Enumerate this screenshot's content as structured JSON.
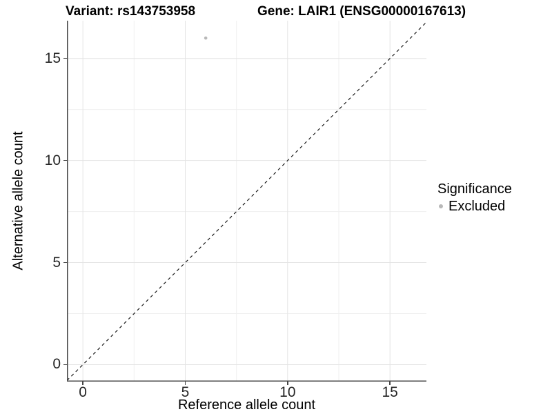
{
  "figure": {
    "title_variant": "Variant: rs143753958",
    "title_gene": "Gene: LAIR1 (ENSG00000167613)"
  },
  "legend": {
    "title": "Significance",
    "items": [
      {
        "label": "Excluded",
        "marker_color": "#b8b8b8"
      }
    ]
  },
  "chart_data": {
    "type": "scatter",
    "title": "Variant: rs143753958    Gene: LAIR1 (ENSG00000167613)",
    "xlabel": "Reference allele count",
    "ylabel": "Alternative allele count",
    "xlim": [
      -0.78,
      16.78
    ],
    "ylim": [
      -0.83,
      16.85
    ],
    "x_major_ticks": [
      0,
      5,
      10,
      15
    ],
    "x_minor_ticks": [
      2.5,
      7.5,
      12.5
    ],
    "y_major_ticks": [
      0,
      5,
      10,
      15
    ],
    "y_minor_ticks": [
      2.5,
      7.5,
      12.5
    ],
    "grid": true,
    "legend_position": "right",
    "points": [
      {
        "x": 6,
        "y": 16,
        "series": "Excluded"
      }
    ],
    "reference_line": {
      "type": "identity",
      "slope": 1,
      "intercept": 0,
      "style": "dashed"
    },
    "colors": {
      "point": "#b8b8b8",
      "reference_line": "#1a1a1a",
      "grid_major": "#e4e4e4",
      "grid_minor": "#efefef",
      "axis_line": "#464646",
      "tick_label": "#262626",
      "background": "#ffffff"
    }
  }
}
